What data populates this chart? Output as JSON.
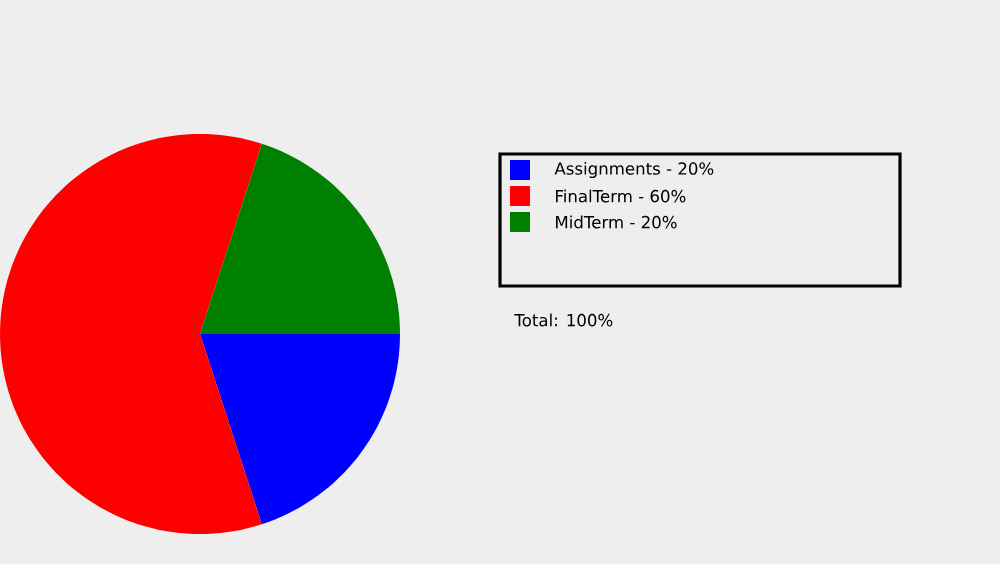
{
  "chart_data": {
    "type": "pie",
    "categories": [
      "Assignments - 20%",
      "FinalTerm - 60%",
      "MidTerm - 20%"
    ],
    "values": [
      20,
      60,
      20
    ],
    "colors": [
      "#0000ff",
      "#ff0000",
      "#008000"
    ],
    "legend": "right",
    "annotations": [
      "Total: 100%"
    ]
  }
}
